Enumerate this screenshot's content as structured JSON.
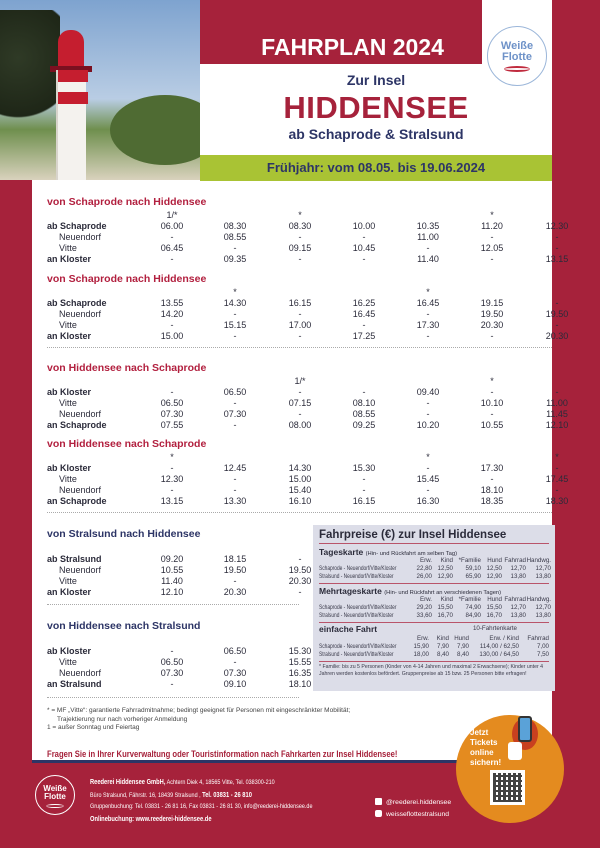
{
  "header": {
    "title": "FAHRPLAN 2024",
    "logo": "Weiße Flotte",
    "subtitle_top": "Zur Insel",
    "island": "HIDDENSEE",
    "subtitle_bottom": "ab Schaprode & Stralsund",
    "season": "Frühjahr: vom 08.05. bis 19.06.2024"
  },
  "colors": {
    "brand_red": "#a6223b",
    "navy": "#2d3566",
    "green": "#a9c334",
    "orange": "#e48b1f"
  },
  "timetables": [
    {
      "title": "von Schaprode nach Hiddensee",
      "color": "red",
      "notes": [
        "1/*",
        "",
        "*",
        "",
        "",
        "*",
        ""
      ],
      "rows": [
        {
          "label": "ab Schaprode",
          "style": "bold",
          "values": [
            "06.00",
            "08.30",
            "08.30",
            "10.00",
            "10.35",
            "11.20",
            "12.30"
          ]
        },
        {
          "label": "Neuendorf",
          "style": "indent",
          "values": [
            "-",
            "08.55",
            "-",
            "-",
            "11.00",
            "-",
            "-"
          ]
        },
        {
          "label": "Vitte",
          "style": "indent",
          "values": [
            "06.45",
            "-",
            "09.15",
            "10.45",
            "-",
            "12.05",
            "-"
          ]
        },
        {
          "label": "an Kloster",
          "style": "bold",
          "values": [
            "-",
            "09.35",
            "-",
            "-",
            "11.40",
            "-",
            "13.15"
          ]
        }
      ]
    },
    {
      "title": "von Schaprode nach Hiddensee",
      "color": "red",
      "notes": [
        "",
        "*",
        "",
        "",
        "*",
        "",
        ""
      ],
      "rows": [
        {
          "label": "ab Schaprode",
          "style": "bold",
          "values": [
            "13.55",
            "14.30",
            "16.15",
            "16.25",
            "16.45",
            "19.15",
            "-"
          ]
        },
        {
          "label": "Neuendorf",
          "style": "indent",
          "values": [
            "14.20",
            "-",
            "-",
            "16.45",
            "-",
            "19.50",
            "19.50"
          ]
        },
        {
          "label": "Vitte",
          "style": "indent",
          "values": [
            "-",
            "15.15",
            "17.00",
            "-",
            "17.30",
            "20.30",
            "-"
          ]
        },
        {
          "label": "an Kloster",
          "style": "bold",
          "values": [
            "15.00",
            "-",
            "-",
            "17.25",
            "-",
            "-",
            "20.30"
          ]
        }
      ]
    },
    {
      "title": "von Hiddensee nach Schaprode",
      "color": "red",
      "notes": [
        "",
        "",
        "1/*",
        "",
        "",
        "*",
        ""
      ],
      "rows": [
        {
          "label": "ab Kloster",
          "style": "bold",
          "values": [
            "-",
            "06.50",
            "-",
            "-",
            "09.40",
            "-",
            "-"
          ]
        },
        {
          "label": "Vitte",
          "style": "indent",
          "values": [
            "06.50",
            "-",
            "07.15",
            "08.10",
            "-",
            "10.10",
            "11.00"
          ]
        },
        {
          "label": "Neuendorf",
          "style": "indent",
          "values": [
            "07.30",
            "07.30",
            "-",
            "08.55",
            "-",
            "-",
            "11.45"
          ]
        },
        {
          "label": "an Schaprode",
          "style": "bold",
          "values": [
            "07.55",
            "-",
            "08.00",
            "09.25",
            "10.20",
            "10.55",
            "12.10"
          ]
        }
      ]
    },
    {
      "title": "von Hiddensee nach Schaprode",
      "color": "red",
      "notes": [
        "*",
        "",
        "",
        "",
        "*",
        "",
        "*"
      ],
      "rows": [
        {
          "label": "ab Kloster",
          "style": "bold",
          "values": [
            "-",
            "12.45",
            "14.30",
            "15.30",
            "-",
            "17.30",
            "-"
          ]
        },
        {
          "label": "Vitte",
          "style": "indent",
          "values": [
            "12.30",
            "-",
            "15.00",
            "-",
            "15.45",
            "-",
            "17.45"
          ]
        },
        {
          "label": "Neuendorf",
          "style": "indent",
          "values": [
            "-",
            "-",
            "15.40",
            "-",
            "-",
            "18.10",
            "-"
          ]
        },
        {
          "label": "an Schaprode",
          "style": "bold",
          "values": [
            "13.15",
            "13.30",
            "16.10",
            "16.15",
            "16.30",
            "18.35",
            "18.30"
          ]
        }
      ]
    },
    {
      "title": "von Stralsund nach Hiddensee",
      "color": "blue",
      "notes": [],
      "rows": [
        {
          "label": "ab Stralsund",
          "style": "bold",
          "values": [
            "09.20",
            "18.15",
            "-"
          ]
        },
        {
          "label": "Neuendorf",
          "style": "indent",
          "values": [
            "10.55",
            "19.50",
            "19.50"
          ]
        },
        {
          "label": "Vitte",
          "style": "indent",
          "values": [
            "11.40",
            "-",
            "20.30"
          ]
        },
        {
          "label": "an Kloster",
          "style": "bold",
          "values": [
            "12.10",
            "20.30",
            "-"
          ]
        }
      ]
    },
    {
      "title": "von Hiddensee nach Stralsund",
      "color": "blue",
      "notes": [],
      "rows": [
        {
          "label": "ab Kloster",
          "style": "bold",
          "values": [
            "-",
            "06.50",
            "15.30"
          ]
        },
        {
          "label": "Vitte",
          "style": "indent",
          "values": [
            "06.50",
            "-",
            "15.55"
          ]
        },
        {
          "label": "Neuendorf",
          "style": "indent",
          "values": [
            "07.30",
            "07.30",
            "16.35"
          ]
        },
        {
          "label": "an Stralsund",
          "style": "bold",
          "values": [
            "-",
            "09.10",
            "18.10"
          ]
        }
      ]
    }
  ],
  "prices": {
    "title": "Fahrpreise (€) zur Insel Hiddensee",
    "sections": [
      {
        "name": "Tageskarte",
        "desc": "(Hin- und Rückfahrt am selben Tag)",
        "headers": [
          "Erw.",
          "Kind",
          "*Familie",
          "Hund",
          "Fahrrad",
          "Handwg."
        ],
        "rows": [
          {
            "route": "Schaprode - Neuendorf/Vitte/Kloster",
            "values": [
              "22,80",
              "12,50",
              "59,10",
              "12,50",
              "12,70",
              "12,70"
            ]
          },
          {
            "route": "Stralsund - Neuendorf/Vitte/Kloster",
            "values": [
              "26,00",
              "12,90",
              "65,90",
              "12,90",
              "13,80",
              "13,80"
            ]
          }
        ]
      },
      {
        "name": "Mehrtageskarte",
        "desc": "(Hin- und Rückfahrt an verschiedenen Tagen)",
        "headers": [
          "Erw.",
          "Kind",
          "*Familie",
          "Hund",
          "Fahrrad",
          "Handwg."
        ],
        "rows": [
          {
            "route": "Schaprode - Neuendorf/Vitte/Kloster",
            "values": [
              "29,20",
              "15,50",
              "74,90",
              "15,50",
              "12,70",
              "12,70"
            ]
          },
          {
            "route": "Stralsund - Neuendorf/Vitte/Kloster",
            "values": [
              "33,60",
              "16,70",
              "84,90",
              "16,70",
              "13,80",
              "13,80"
            ]
          }
        ]
      }
    ],
    "single": {
      "name": "einfache Fahrt",
      "ten_ride": "10-Fahrtenkarte",
      "headers": [
        "Erw.",
        "Kind",
        "Hund",
        "Erw. / Kind",
        "Fahrrad"
      ],
      "rows": [
        {
          "route": "Schaprode - Neuendorf/Vitte/Kloster",
          "values": [
            "15,90",
            "7,90",
            "7,90",
            "114,00 / 62,50",
            "7,00"
          ]
        },
        {
          "route": "Stralsund - Neuendorf/Vitte/Kloster",
          "values": [
            "18,00",
            "8,40",
            "8,40",
            "130,00 / 64,50",
            "7,50"
          ]
        }
      ]
    },
    "footnote": "* Familie: bis zu 5 Personen (Kinder von 4-14 Jahren und maximal 2 Erwachsene); Kinder unter 4 Jahren werden kostenlos befördert. Gruppenpreise ab 15 bzw. 25 Personen bitte erfragen!"
  },
  "legend": {
    "star": "* = MF „Vitte“: garantierte Fahrradmitnahme; bedingt geeignet für Personen mit eingeschränkter Mobilität;",
    "star2": "Trajektierung nur nach vorheriger Anmeldung",
    "one": "1 = außer Sonntag und Feiertag"
  },
  "ask": "Fragen Sie in Ihrer Kurverwaltung oder Touristinformation nach Fahrkarten zur Insel Hiddensee!",
  "promo": {
    "line1": "Jetzt",
    "line2": "Tickets",
    "line3": "online",
    "line4": "sichern!"
  },
  "footer": {
    "company": "Reederei Hiddensee GmbH,",
    "address": "Achtern Diek 4, 18565 Vitte, Tel. 038300-210",
    "office": "Büro Stralsund, Fährstr. 16, 18439 Stralsund ,",
    "office_tel": "Tel. 03831 - 26 810",
    "groups": "Gruppenbuchung: Tel. 03831 - 26 81 16, Fax 03831 - 26 81 30, info@reederei-hiddensee.de",
    "online": "Onlinebuchung: www.reederei-hiddensee.de",
    "facebook": "@reederei.hiddensee",
    "instagram": "weisseflottestralsund",
    "logo": "Weiße Flotte"
  }
}
